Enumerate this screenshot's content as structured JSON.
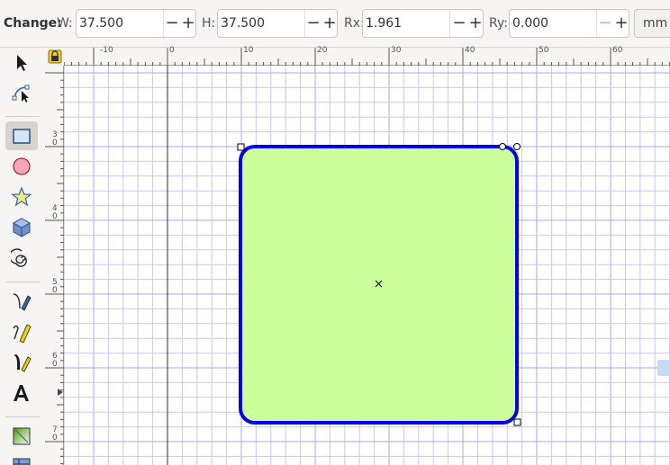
{
  "controls": {
    "change_label": "Change:",
    "w": {
      "label": "W:",
      "value": "37.500"
    },
    "h": {
      "label": "H:",
      "value": "37.500"
    },
    "rx": {
      "label": "Rx:",
      "value": "1.961"
    },
    "ry": {
      "label": "Ry:",
      "value": "0.000"
    },
    "minus": "−",
    "plus": "+",
    "unit": "mm"
  },
  "ruler": {
    "horizontal": [
      "-10",
      "0",
      "10",
      "20",
      "30",
      "40",
      "50",
      "60"
    ],
    "vertical": [
      {
        "top": "3",
        "bottom": "0"
      },
      {
        "top": "4",
        "bottom": "0"
      },
      {
        "top": "5",
        "bottom": "0"
      },
      {
        "top": "6",
        "bottom": "0"
      },
      {
        "top": "7",
        "bottom": "0"
      }
    ]
  },
  "tools": [
    "selector-tool",
    "node-tool",
    "rectangle-tool",
    "ellipse-tool",
    "star-tool",
    "3d-box-tool",
    "spiral-tool",
    "pen-tool",
    "pencil-tool",
    "calligraphy-tool",
    "text-tool",
    "gradient-tool",
    "mesh-tool"
  ],
  "colors": {
    "rect_fill": "#ccff99",
    "rect_stroke": "#0000ff",
    "grid": "#c8c8f0",
    "grid_major": "#a8a8e6"
  }
}
